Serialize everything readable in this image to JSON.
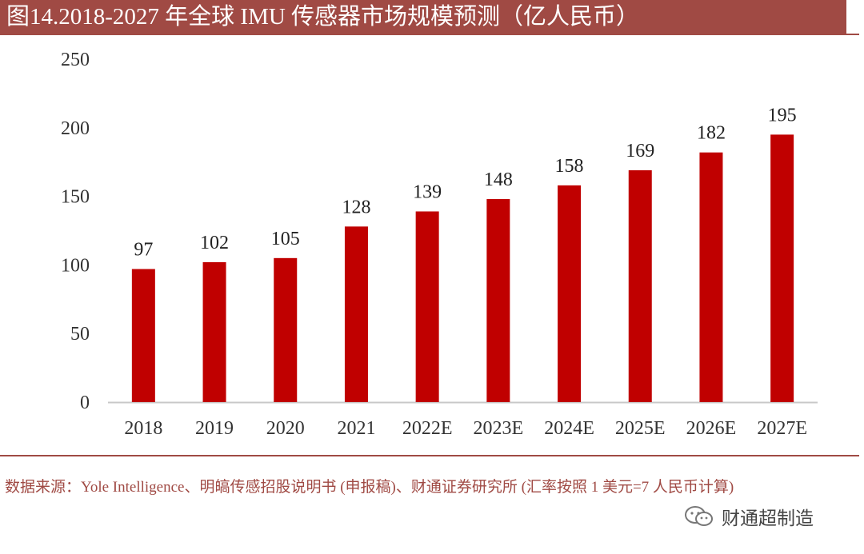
{
  "header": {
    "title": "图14.2018-2027 年全球 IMU 传感器市场规模预测（亿人民币）"
  },
  "chart_data": {
    "type": "bar",
    "title": "图14.2018-2027 年全球 IMU 传感器市场规模预测（亿人民币）",
    "xlabel": "",
    "ylabel": "",
    "categories": [
      "2018",
      "2019",
      "2020",
      "2021",
      "2022E",
      "2023E",
      "2024E",
      "2025E",
      "2026E",
      "2027E"
    ],
    "values": [
      97,
      102,
      105,
      128,
      139,
      148,
      158,
      169,
      182,
      195
    ],
    "data_labels": [
      "97",
      "102",
      "105",
      "128",
      "139",
      "148",
      "158",
      "169",
      "182",
      "195"
    ],
    "ylim": [
      0,
      250
    ],
    "yticks": [
      "0",
      "50",
      "100",
      "150",
      "200",
      "250"
    ],
    "grid": false,
    "bar_color": "#c00000"
  },
  "footer": {
    "source": "数据来源：Yole Intelligence、明皜传感招股说明书 (申报稿)、财通证券研究所 (汇率按照 1 美元=7 人民币计算)"
  },
  "watermark": {
    "text": "财通超制造"
  }
}
